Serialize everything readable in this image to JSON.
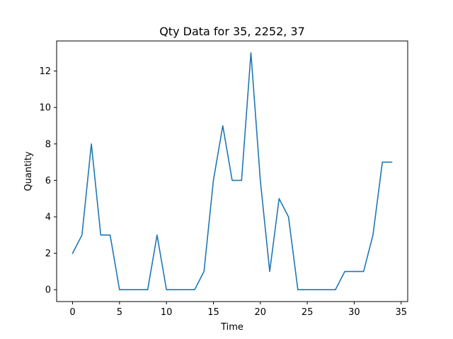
{
  "chart_data": {
    "type": "line",
    "title": "Qty Data for 35, 2252, 37",
    "xlabel": "Time",
    "ylabel": "Quantity",
    "xlim": [
      -1.7,
      35.7
    ],
    "ylim": [
      -0.65,
      13.65
    ],
    "x_ticks": [
      0,
      5,
      10,
      15,
      20,
      25,
      30,
      35
    ],
    "y_ticks": [
      0,
      2,
      4,
      6,
      8,
      10,
      12
    ],
    "grid": false,
    "line_color": "#1f77b4",
    "series": [
      {
        "x": [
          0,
          1,
          2,
          3,
          4,
          5,
          6,
          7,
          8,
          9,
          10,
          11,
          12,
          13,
          14,
          15,
          16,
          17,
          18,
          19,
          20,
          21,
          22,
          23,
          24,
          25,
          26,
          27,
          28,
          29,
          30,
          31,
          32,
          33,
          34
        ],
        "values": [
          2,
          3,
          8,
          3,
          3,
          0,
          0,
          0,
          0,
          3,
          0,
          0,
          0,
          0,
          1,
          6,
          9,
          6,
          6,
          13,
          6,
          1,
          5,
          4,
          0,
          0,
          0,
          0,
          0,
          1,
          1,
          1,
          3,
          7,
          7
        ]
      }
    ]
  }
}
